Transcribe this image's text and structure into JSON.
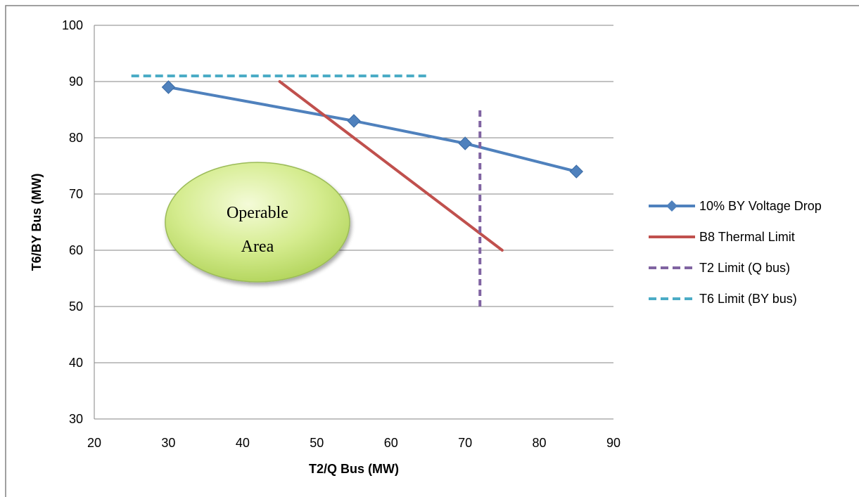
{
  "chart_data": {
    "type": "line",
    "title": "",
    "xlabel": "T2/Q Bus (MW)",
    "ylabel": "T6/BY Bus (MW)",
    "xlim": [
      20,
      90
    ],
    "ylim": [
      30,
      100
    ],
    "xticks": [
      20,
      30,
      40,
      50,
      60,
      70,
      80,
      90
    ],
    "yticks": [
      30,
      40,
      50,
      60,
      70,
      80,
      90,
      100
    ],
    "grid": "horizontal",
    "legend_position": "right",
    "series": [
      {
        "name": "10% BY Voltage Drop",
        "x": [
          30,
          55,
          70,
          85
        ],
        "y": [
          89,
          83,
          79,
          74
        ],
        "color": "#4F81BD",
        "style": "solid",
        "marker": "diamond"
      },
      {
        "name": "B8 Thermal Limit",
        "x": [
          45,
          75
        ],
        "y": [
          90,
          60
        ],
        "color": "#C0504D",
        "style": "solid",
        "marker": "none"
      },
      {
        "name": "T2 Limit (Q bus)",
        "x": [
          72,
          72
        ],
        "y": [
          50,
          85
        ],
        "color": "#8064A2",
        "style": "dashed",
        "marker": "none"
      },
      {
        "name": "T6 Limit (BY bus)",
        "x": [
          25,
          65
        ],
        "y": [
          91,
          91
        ],
        "color": "#4BACC6",
        "style": "dashed",
        "marker": "none"
      }
    ],
    "annotations": [
      {
        "text_lines": [
          "Operable",
          "Area"
        ],
        "shape": "ellipse",
        "center": [
          42,
          65
        ],
        "fill": "#C6E27A"
      }
    ]
  }
}
